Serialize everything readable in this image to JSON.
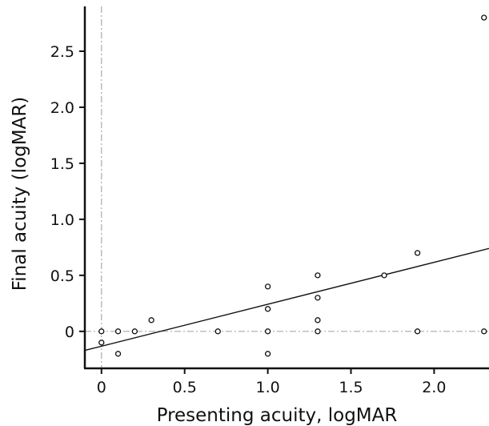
{
  "chart_data": {
    "type": "scatter",
    "xlabel": "Presenting acuity, logMAR",
    "ylabel": "Final acuity (logMAR)",
    "xlim": [
      -0.1,
      2.33
    ],
    "ylim": [
      -0.33,
      2.9
    ],
    "x_ticks": [
      0,
      0.5,
      1.0,
      1.5,
      2.0
    ],
    "x_tick_labels": [
      "0",
      "0.5",
      "1.0",
      "1.5",
      "2.0"
    ],
    "y_ticks": [
      0,
      0.5,
      1.0,
      1.5,
      2.0,
      2.5
    ],
    "y_tick_labels": [
      "0",
      "0.5",
      "1.0",
      "1.5",
      "2.0",
      "2.5"
    ],
    "grid": false,
    "reference_lines": [
      {
        "orientation": "vertical",
        "value": 0,
        "style": "dash-dot",
        "color": "#aaaaaa"
      },
      {
        "orientation": "horizontal",
        "value": 0,
        "style": "dash-dot",
        "color": "#aaaaaa"
      }
    ],
    "points": [
      {
        "x": 0,
        "y": 0
      },
      {
        "x": 0,
        "y": -0.1
      },
      {
        "x": 0.1,
        "y": 0
      },
      {
        "x": 0.1,
        "y": -0.2
      },
      {
        "x": 0.2,
        "y": 0
      },
      {
        "x": 0.3,
        "y": 0.1
      },
      {
        "x": 0.7,
        "y": 0
      },
      {
        "x": 1.0,
        "y": 0.4
      },
      {
        "x": 1.0,
        "y": 0.2
      },
      {
        "x": 1.0,
        "y": 0
      },
      {
        "x": 1.0,
        "y": -0.2
      },
      {
        "x": 1.3,
        "y": 0.5
      },
      {
        "x": 1.3,
        "y": 0.3
      },
      {
        "x": 1.3,
        "y": 0.1
      },
      {
        "x": 1.3,
        "y": 0
      },
      {
        "x": 1.7,
        "y": 0.5
      },
      {
        "x": 1.9,
        "y": 0.7
      },
      {
        "x": 1.9,
        "y": 0
      },
      {
        "x": 2.3,
        "y": 2.8
      },
      {
        "x": 2.3,
        "y": 0
      }
    ],
    "fit_line": {
      "type": "linear",
      "x": [
        -0.1,
        2.33
      ],
      "y": [
        -0.17,
        0.74
      ],
      "color": "#111111"
    },
    "marker": {
      "shape": "open-circle",
      "color": "#111111"
    }
  }
}
